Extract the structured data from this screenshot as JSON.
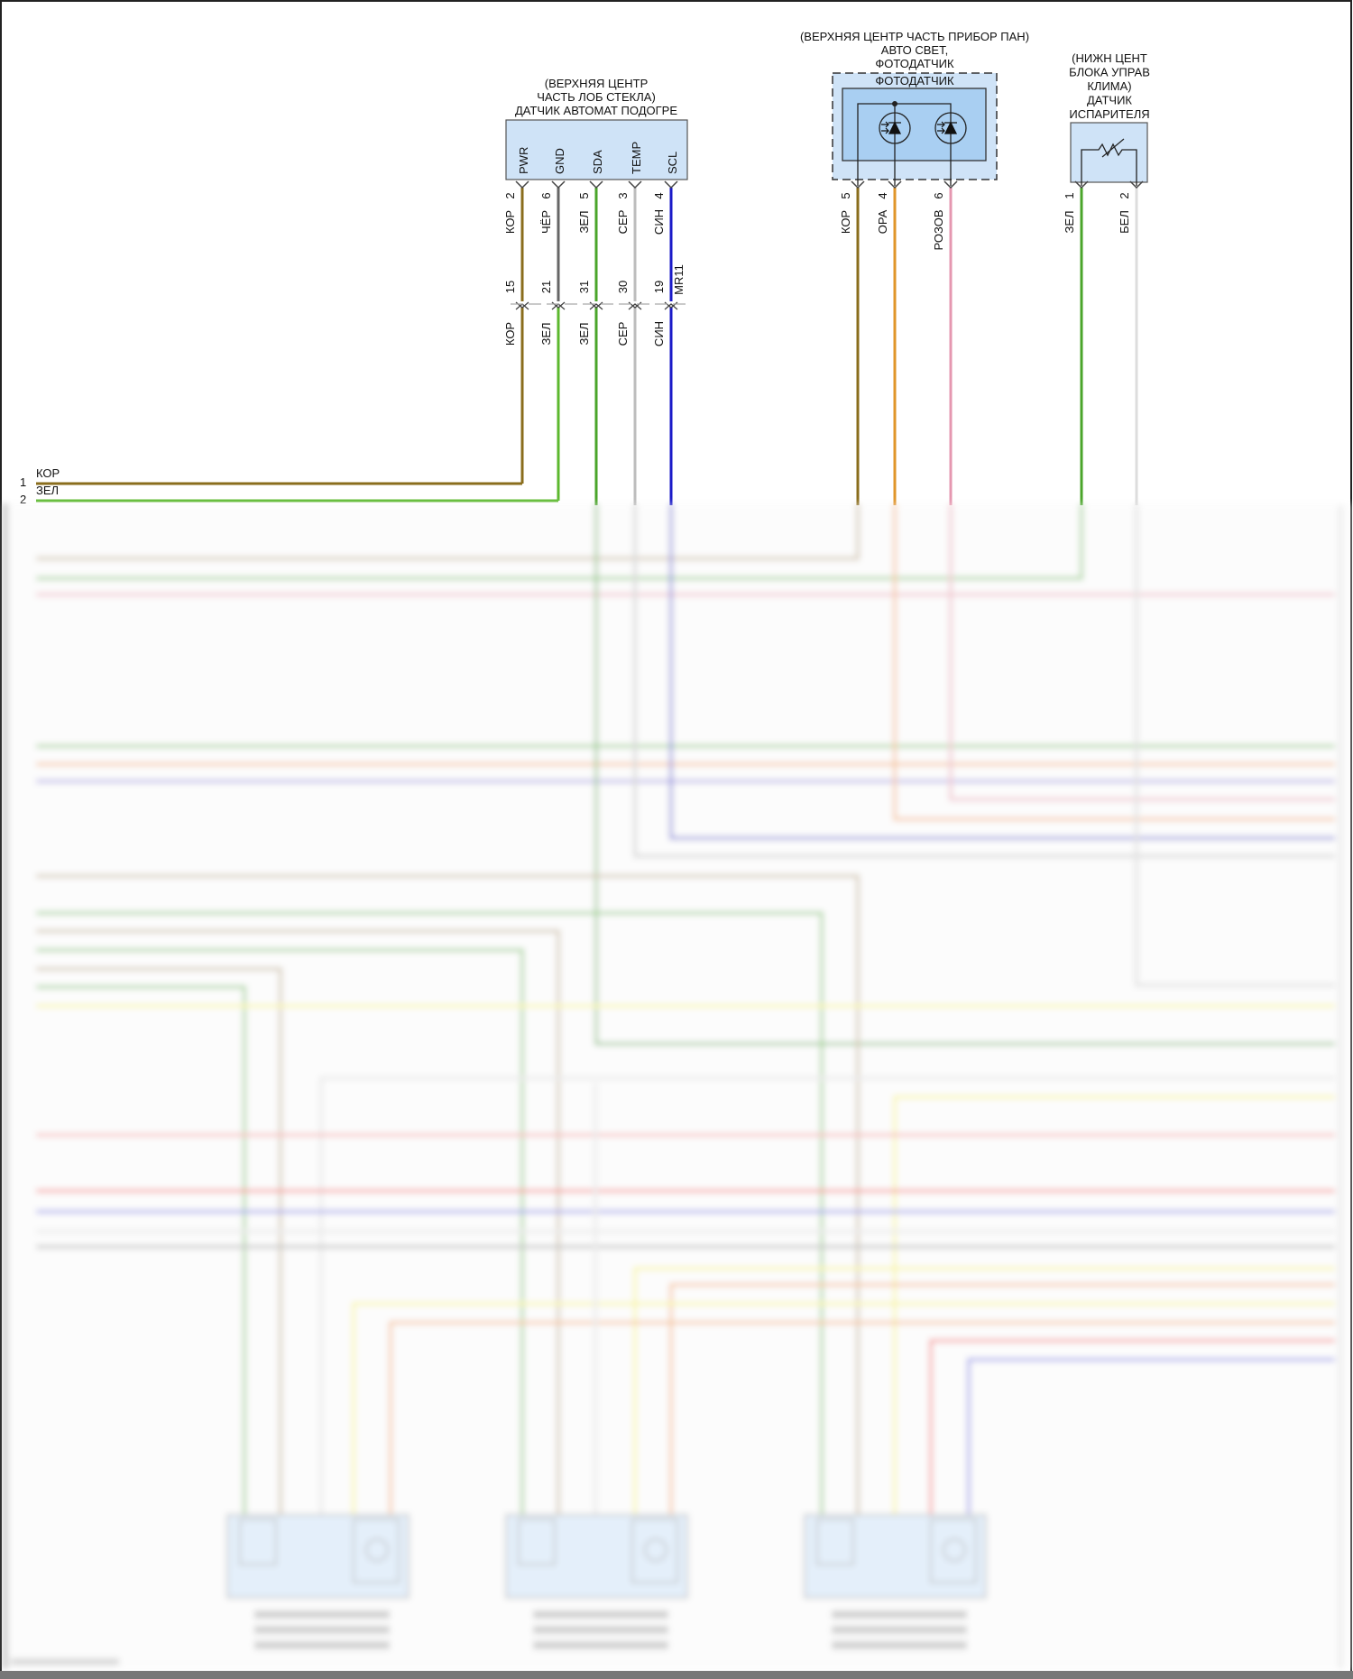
{
  "left_terminals": [
    {
      "num": "1",
      "label": "КОР"
    },
    {
      "num": "2",
      "label": "ЗЕЛ"
    }
  ],
  "windshield_sensor": {
    "title": [
      "(ВЕРХНЯЯ ЦЕНТР",
      "ЧАСТЬ ЛОБ СТЕКЛА)",
      "ДАТЧИК АВТОМАТ ПОДОГРЕ"
    ],
    "inline_connector": "MR11",
    "pins": [
      {
        "name": "PWR",
        "num": "2",
        "label": "КОР",
        "inline_num": "15",
        "lower_label": "КОР",
        "color": "#8a6d1c",
        "lower_color": "#8a6d1c"
      },
      {
        "name": "GND",
        "num": "6",
        "label": "ЧЁР",
        "inline_num": "21",
        "lower_label": "ЗЕЛ",
        "color": "#666666",
        "lower_color": "#5cb82e"
      },
      {
        "name": "SDA",
        "num": "5",
        "label": "ЗЕЛ",
        "inline_num": "31",
        "lower_label": "ЗЕЛ",
        "color": "#4aa52a",
        "lower_color": "#4aa52a"
      },
      {
        "name": "TEMP",
        "num": "3",
        "label": "СЕР",
        "inline_num": "30",
        "lower_label": "СЕР",
        "color": "#bdbdbd",
        "lower_color": "#bdbdbd"
      },
      {
        "name": "SCL",
        "num": "4",
        "label": "СИН",
        "inline_num": "19",
        "lower_label": "СИН",
        "color": "#1a1ac8",
        "lower_color": "#1a1ac8"
      }
    ]
  },
  "photo_sensor": {
    "title": [
      "(ВЕРХНЯЯ ЦЕНТР ЧАСТЬ ПРИБОР ПАН)",
      "АВТО СВЕТ,",
      "ФОТОДАТЧИК"
    ],
    "inner_label": "ФОТОДАТЧИК",
    "pins": [
      {
        "num": "5",
        "label": "КОР",
        "color": "#8a6d1c"
      },
      {
        "num": "4",
        "label": "ОРА",
        "color": "#e0962a"
      },
      {
        "num": "6",
        "label": "РОЗОВ",
        "color": "#e597b0"
      }
    ]
  },
  "evaporator_sensor": {
    "title": [
      "(НИЖН ЦЕНТ",
      "БЛОКА УПРАВ",
      "КЛИМА)",
      "ДАТЧИК",
      "ИСПАРИТЕЛЯ"
    ],
    "pins": [
      {
        "num": "1",
        "label": "ЗЕЛ",
        "color": "#4aa52a"
      },
      {
        "num": "2",
        "label": "БЕЛ",
        "color": "#dddddd"
      }
    ]
  },
  "colors": {
    "component_fill": "#cfe3f7",
    "inner_fill": "#a9cff2",
    "border": "#555555"
  }
}
